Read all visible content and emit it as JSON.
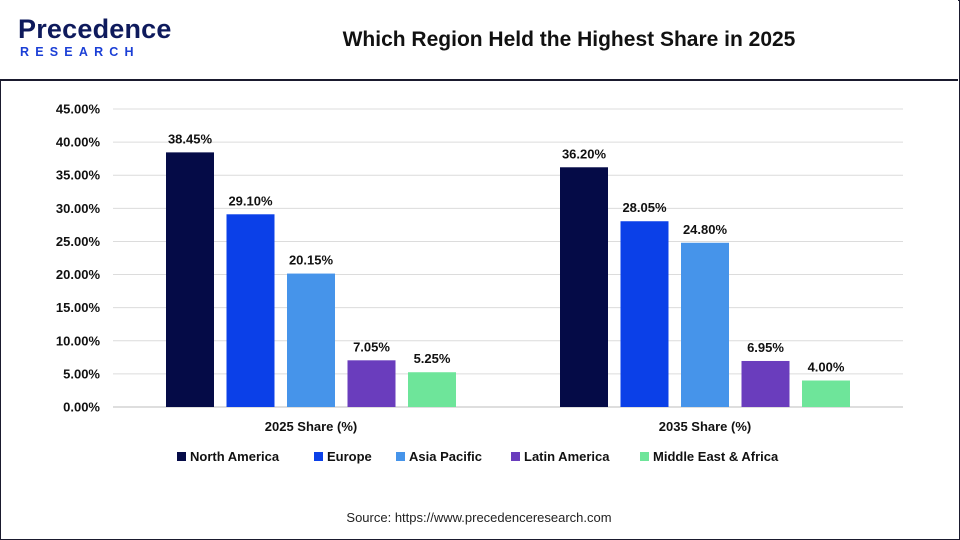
{
  "logo": {
    "line1": "Precedence",
    "line2": "RESEARCH"
  },
  "title": "Which Region Held the Highest Share in 2025",
  "source": "Source: https://www.precedenceresearch.com",
  "chart_data": {
    "type": "bar",
    "title": "Which Region Held the Highest Share in 2025",
    "xlabel": "",
    "ylabel": "",
    "categories": [
      "2025 Share (%)",
      "2035 Share (%)"
    ],
    "series": [
      {
        "name": "North America",
        "color": "#050b47",
        "values": [
          38.45,
          36.2
        ],
        "labels": [
          "38.45%",
          "36.20%"
        ]
      },
      {
        "name": "Europe",
        "color": "#0b40e8",
        "values": [
          29.1,
          28.05
        ],
        "labels": [
          "29.10%",
          "28.05%"
        ]
      },
      {
        "name": "Asia Pacific",
        "color": "#4694ea",
        "values": [
          20.15,
          24.8
        ],
        "labels": [
          "20.15%",
          "24.80%"
        ]
      },
      {
        "name": "Latin America",
        "color": "#6a3dbd",
        "values": [
          7.05,
          6.95
        ],
        "labels": [
          "7.05%",
          "6.95%"
        ]
      },
      {
        "name": "Middle East & Africa",
        "color": "#6ee59a",
        "values": [
          5.25,
          4.0
        ],
        "labels": [
          "5.25%",
          "4.00%"
        ]
      }
    ],
    "ylim": [
      0,
      45
    ],
    "yticks": [
      0,
      5,
      10,
      15,
      20,
      25,
      30,
      35,
      40,
      45
    ],
    "ytick_labels": [
      "0.00%",
      "5.00%",
      "10.00%",
      "15.00%",
      "20.00%",
      "25.00%",
      "30.00%",
      "35.00%",
      "40.00%",
      "45.00%"
    ],
    "grid": true,
    "legend_position": "bottom"
  }
}
